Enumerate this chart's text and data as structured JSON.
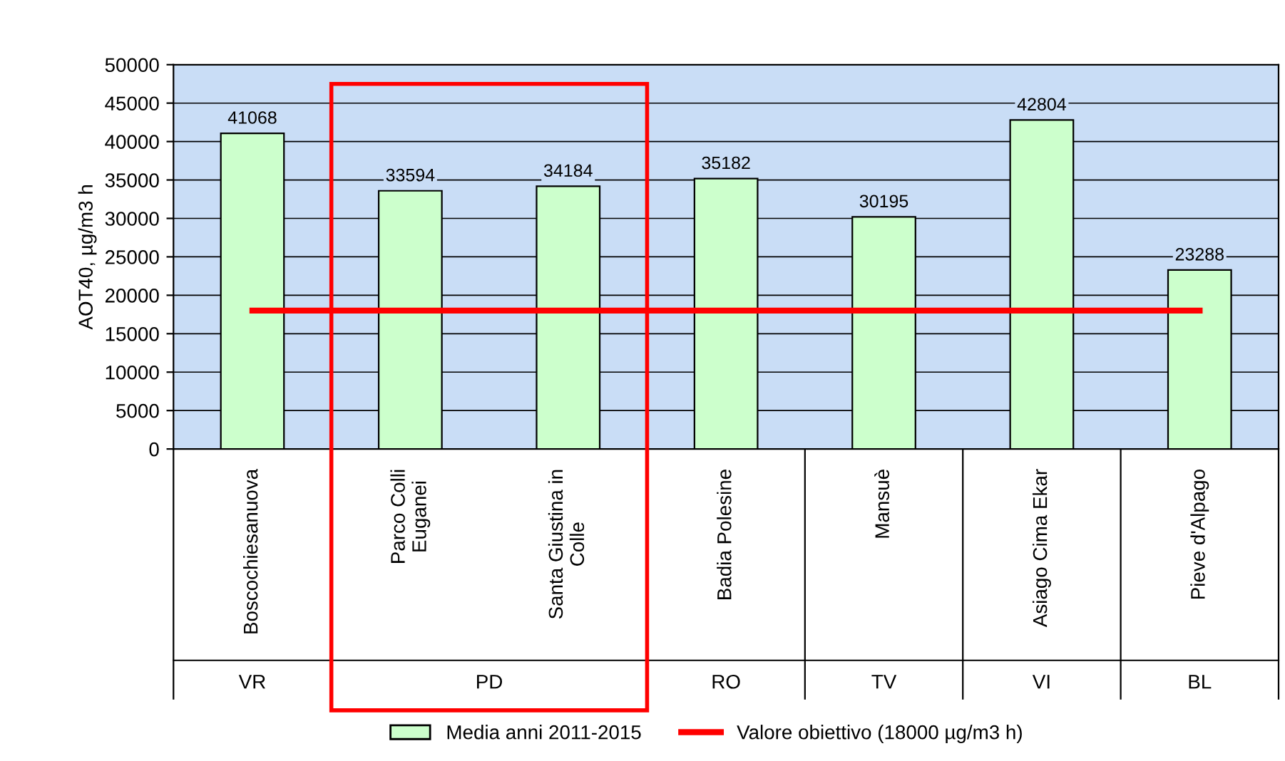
{
  "chart_data": {
    "type": "bar",
    "ylabel": "AOT40, µg/m3 h",
    "categories": [
      "Boscochiesanuova",
      "Parco Colli\nEuganei",
      "Santa Giustina in\nColle",
      "Badia Polesine",
      "Mansuè",
      "Asiago Cima Ekar",
      "Pieve d'Alpago"
    ],
    "series": [
      {
        "name": "Media anni 2011-2015",
        "color": "#ccffcc",
        "values": [
          41068,
          33594,
          34184,
          35182,
          30195,
          42804,
          23288
        ],
        "value_labels": [
          "41068",
          "33594",
          "34184",
          "35182",
          "30195",
          "42804",
          "23288"
        ]
      },
      {
        "name": "Valore obiettivo (18000 µg/m3 h)",
        "type": "line",
        "color": "#ff0000",
        "values": [
          18000,
          18000,
          18000,
          18000,
          18000,
          18000,
          18000
        ]
      }
    ],
    "ylim": [
      0,
      50000
    ],
    "yticks": [
      0,
      5000,
      10000,
      15000,
      20000,
      25000,
      30000,
      35000,
      40000,
      45000,
      50000
    ],
    "grid": "y",
    "legend": "bottom",
    "annotations": [
      "VR",
      "PD",
      "RO",
      "TV",
      "VI",
      "BL"
    ]
  }
}
